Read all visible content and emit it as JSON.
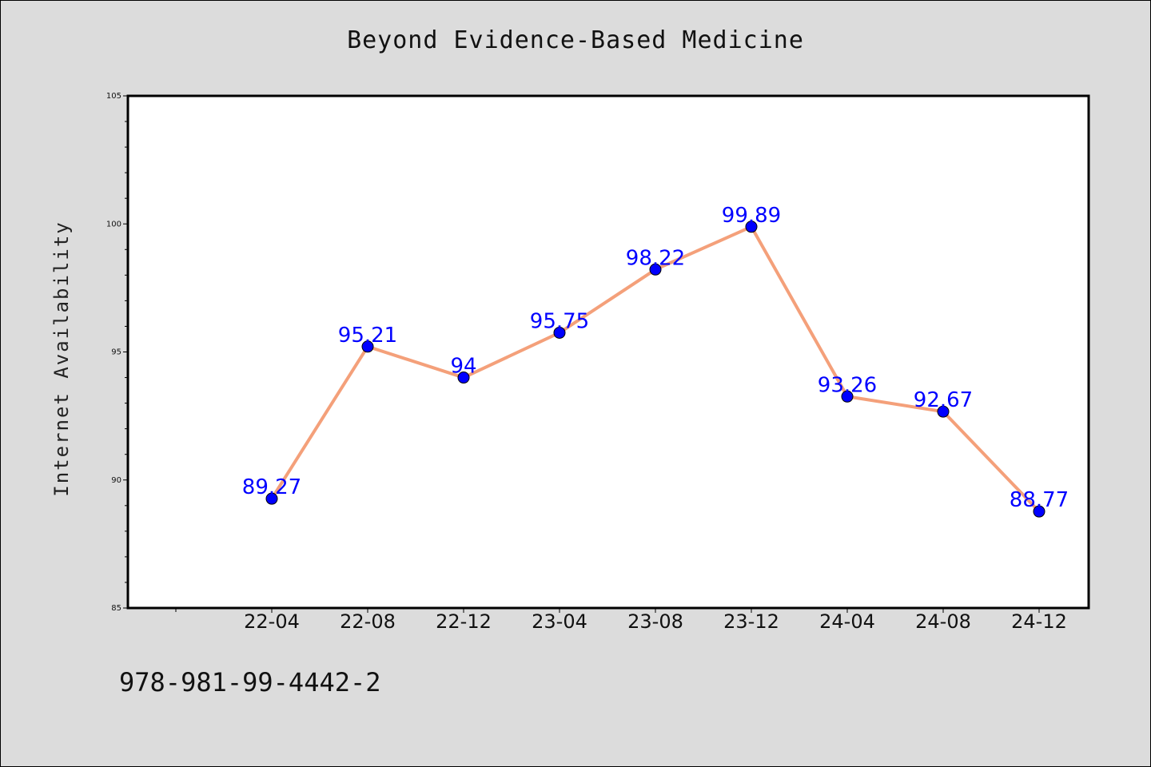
{
  "title": "Beyond Evidence-Based Medicine",
  "footer_text": "978-981-99-4442-2",
  "colors": {
    "background": "#dcdcdc",
    "plot_background": "#ffffff",
    "line": "#f4a07a",
    "marker": "#0000ff",
    "data_label": "#0000ff"
  },
  "chart_data": {
    "type": "line",
    "x": [
      "22-04",
      "22-08",
      "22-12",
      "23-04",
      "23-08",
      "23-12",
      "24-04",
      "24-08",
      "24-12"
    ],
    "series": [
      {
        "values": [
          89.27,
          95.21,
          94,
          95.75,
          98.22,
          99.89,
          93.26,
          92.67,
          88.77
        ],
        "data_labels": [
          "89.27",
          "95.21",
          "94",
          "95.75",
          "98.22",
          "99.89",
          "93.26",
          "92.67",
          "88.77"
        ]
      }
    ],
    "xlabel": "",
    "ylabel": "Internet Availability",
    "ylim": [
      85,
      105
    ],
    "y_ticks": [
      85,
      90,
      95,
      100,
      105
    ],
    "y_tick_labels": [
      "85",
      "90",
      "95",
      "100",
      "105"
    ],
    "y_minor_step": 1,
    "grid": false,
    "legend": "none"
  }
}
